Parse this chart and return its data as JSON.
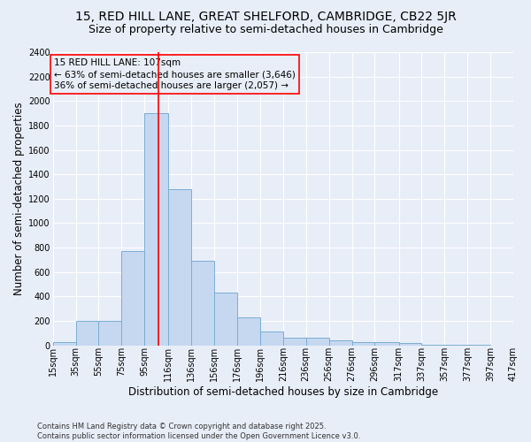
{
  "title_line1": "15, RED HILL LANE, GREAT SHELFORD, CAMBRIDGE, CB22 5JR",
  "title_line2": "Size of property relative to semi-detached houses in Cambridge",
  "xlabel": "Distribution of semi-detached houses by size in Cambridge",
  "ylabel": "Number of semi-detached properties",
  "footer_line1": "Contains HM Land Registry data © Crown copyright and database right 2025.",
  "footer_line2": "Contains public sector information licensed under the Open Government Licence v3.0.",
  "annotation_line1": "15 RED HILL LANE: 107sqm",
  "annotation_line2": "← 63% of semi-detached houses are smaller (3,646)",
  "annotation_line3": "36% of semi-detached houses are larger (2,057) →",
  "property_size": 107,
  "bin_edges": [
    15,
    35,
    55,
    75,
    95,
    116,
    136,
    156,
    176,
    196,
    216,
    236,
    256,
    276,
    296,
    317,
    337,
    357,
    377,
    397,
    417
  ],
  "bin_labels": [
    "15sqm",
    "35sqm",
    "55sqm",
    "75sqm",
    "95sqm",
    "116sqm",
    "136sqm",
    "156sqm",
    "176sqm",
    "196sqm",
    "216sqm",
    "236sqm",
    "256sqm",
    "276sqm",
    "296sqm",
    "317sqm",
    "337sqm",
    "357sqm",
    "377sqm",
    "397sqm",
    "417sqm"
  ],
  "bar_heights": [
    25,
    200,
    200,
    775,
    1900,
    1275,
    690,
    430,
    230,
    110,
    65,
    65,
    40,
    30,
    25,
    20,
    5,
    5,
    2,
    1
  ],
  "bar_color": "#c5d8f0",
  "bar_edge_color": "#7badd4",
  "vline_color": "red",
  "vline_x": 107,
  "annotation_box_color": "red",
  "ylim": [
    0,
    2400
  ],
  "yticks": [
    0,
    200,
    400,
    600,
    800,
    1000,
    1200,
    1400,
    1600,
    1800,
    2000,
    2200,
    2400
  ],
  "bg_color": "#e8eef8",
  "plot_bg_color": "#e8eef8",
  "grid_color": "white",
  "title_fontsize": 10,
  "subtitle_fontsize": 9,
  "axis_label_fontsize": 8.5,
  "tick_fontsize": 7,
  "annotation_fontsize": 7.5,
  "footer_fontsize": 6
}
